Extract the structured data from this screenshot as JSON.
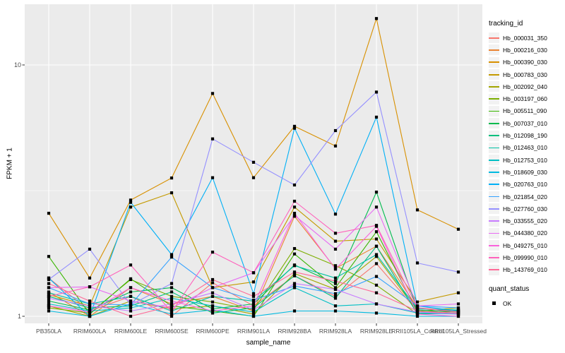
{
  "chart_data": {
    "type": "line",
    "title": "",
    "x_axis_label": "sample_name",
    "y_axis_label": "FPKM + 1",
    "y_scale": "log10",
    "grid": true,
    "legend_position": "right",
    "y_tick_values": [
      1,
      10
    ],
    "y_tick_labels": [
      "1",
      "10"
    ],
    "y_minor_gridlines": [
      3.162
    ],
    "ylim": [
      1,
      17.5
    ],
    "categories": [
      "PB350LA",
      "RRIM600LA",
      "RRIM600LE",
      "RRIM600SE",
      "RRIM600PE",
      "RRIM901LA",
      "RRIM928BA",
      "RRIM928LA",
      "RRIM928LE",
      "RRII105LA_Control",
      "RRII105LA_Stressed"
    ],
    "point_marker": "black-square",
    "series": [
      {
        "name": "Hb_000031_350",
        "color": "#F8766D",
        "values": [
          1.42,
          1.05,
          1.2,
          1.0,
          1.36,
          1.1,
          1.45,
          1.2,
          1.62,
          1.05,
          1.02
        ]
      },
      {
        "name": "Hb_000216_030",
        "color": "#EA8331",
        "values": [
          1.25,
          1.0,
          1.3,
          1.12,
          1.2,
          1.05,
          2.5,
          1.55,
          1.9,
          1.08,
          1.05
        ]
      },
      {
        "name": "Hb_000390_030",
        "color": "#D89000",
        "values": [
          2.57,
          1.42,
          2.9,
          3.55,
          7.7,
          3.56,
          5.7,
          4.76,
          15.3,
          2.65,
          2.22
        ]
      },
      {
        "name": "Hb_000783_030",
        "color": "#C49A00",
        "values": [
          1.22,
          1.1,
          2.72,
          3.1,
          1.3,
          1.37,
          2.72,
          1.99,
          2.03,
          1.14,
          1.24
        ]
      },
      {
        "name": "Hb_002092_040",
        "color": "#A3A500",
        "values": [
          1.1,
          1.0,
          1.15,
          1.07,
          1.1,
          1.02,
          1.48,
          1.28,
          1.73,
          1.05,
          1.08
        ]
      },
      {
        "name": "Hb_003197_060",
        "color": "#7CAE00",
        "values": [
          1.08,
          1.03,
          1.4,
          1.2,
          1.14,
          1.06,
          1.86,
          1.59,
          1.33,
          1.02,
          1.05
        ]
      },
      {
        "name": "Hb_005511_090",
        "color": "#39B600",
        "values": [
          1.73,
          1.02,
          1.41,
          1.1,
          1.05,
          1.0,
          1.77,
          1.3,
          2.17,
          1.04,
          1.06
        ]
      },
      {
        "name": "Hb_007037_010",
        "color": "#00BB4E",
        "values": [
          1.15,
          1.06,
          1.25,
          1.3,
          1.07,
          1.12,
          1.6,
          1.35,
          3.12,
          1.06,
          1.04
        ]
      },
      {
        "name": "Hb_012098_190",
        "color": "#00BF7D",
        "values": [
          1.2,
          1.08,
          1.1,
          1.25,
          1.03,
          1.08,
          1.45,
          1.18,
          1.9,
          1.02,
          1.03
        ]
      },
      {
        "name": "Hb_012463_010",
        "color": "#00C1A3",
        "values": [
          1.24,
          1.12,
          1.2,
          1.05,
          1.2,
          1.15,
          1.59,
          1.42,
          1.76,
          1.07,
          1.06
        ]
      },
      {
        "name": "Hb_012753_010",
        "color": "#00BFC4",
        "values": [
          1.12,
          1.05,
          1.08,
          1.18,
          1.1,
          1.04,
          1.3,
          1.1,
          1.12,
          1.03,
          1.02
        ]
      },
      {
        "name": "Hb_018609_030",
        "color": "#00BAE0",
        "values": [
          1.05,
          1.0,
          1.12,
          1.02,
          1.06,
          1.0,
          1.05,
          1.05,
          1.03,
          1.0,
          1.0
        ]
      },
      {
        "name": "Hb_020763_010",
        "color": "#00B0F6",
        "values": [
          1.42,
          1.0,
          2.84,
          1.76,
          3.56,
          1.23,
          5.6,
          2.55,
          6.2,
          1.1,
          1.05
        ]
      },
      {
        "name": "Hb_021854_020",
        "color": "#35A2FF",
        "values": [
          1.3,
          1.12,
          1.11,
          1.72,
          1.3,
          1.16,
          1.32,
          1.23,
          1.44,
          1.1,
          1.08
        ]
      },
      {
        "name": "Hb_027760_030",
        "color": "#9590FF",
        "values": [
          1.4,
          1.85,
          1.11,
          1.35,
          5.08,
          4.1,
          3.33,
          5.48,
          7.8,
          1.63,
          1.5
        ]
      },
      {
        "name": "Hb_033555_020",
        "color": "#C77CFF",
        "values": [
          1.18,
          1.1,
          1.05,
          1.12,
          1.24,
          1.06,
          1.35,
          1.28,
          1.12,
          1.04,
          1.02
        ]
      },
      {
        "name": "Hb_044380_020",
        "color": "#E76BF3",
        "values": [
          1.3,
          1.31,
          1.15,
          1.08,
          1.3,
          1.49,
          2.52,
          1.85,
          2.72,
          1.1,
          1.12
        ]
      },
      {
        "name": "Hb_049275_010",
        "color": "#FA62DB",
        "values": [
          1.1,
          1.04,
          1.3,
          1.15,
          1.05,
          1.1,
          2.57,
          1.54,
          2.28,
          1.02,
          1.0
        ]
      },
      {
        "name": "Hb_099990_010",
        "color": "#FF62BC",
        "values": [
          1.2,
          1.31,
          1.6,
          1.04,
          1.8,
          1.49,
          2.87,
          2.14,
          2.3,
          1.08,
          1.04
        ]
      },
      {
        "name": "Hb_143769_010",
        "color": "#FF6A98",
        "values": [
          1.35,
          1.15,
          1.0,
          1.1,
          1.4,
          1.2,
          1.5,
          1.38,
          1.24,
          1.05,
          1.03
        ]
      }
    ]
  },
  "legend": {
    "tracking": {
      "title": "tracking_id"
    },
    "quant": {
      "title": "quant_status",
      "items": [
        {
          "label": "OK",
          "marker": "black-square"
        }
      ]
    }
  },
  "colors": {
    "panel_bg": "#EBEBEB",
    "gridline": "#FFFFFF",
    "axis_text": "#4D4D4D",
    "tick_mark": "#333333",
    "point": "#000000",
    "legend_key_bg": "#F2F2F2"
  }
}
